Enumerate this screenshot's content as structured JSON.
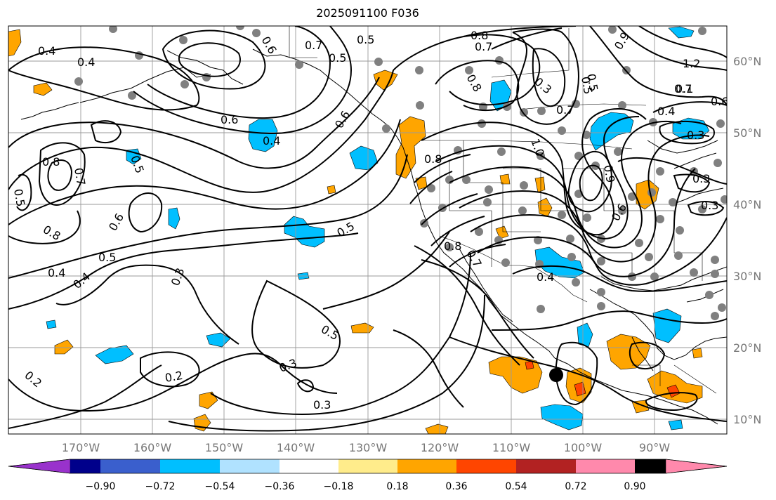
{
  "title": "2025091100 F036",
  "longitude_labels": [
    "170°W",
    "160°W",
    "150°W",
    "140°W",
    "130°W",
    "120°W",
    "110°W",
    "100°W",
    "90°W"
  ],
  "latitude_labels": [
    "60°N",
    "50°N",
    "40°N",
    "30°N",
    "20°N",
    "10°N"
  ],
  "colorbar": {
    "colors": [
      "#9932cc",
      "#00008b",
      "#3a5fcd",
      "#00bfff",
      "#b0e2ff",
      "#ffffff",
      "#ffec8b",
      "#ffa500",
      "#ff4500",
      "#b22222",
      "#ff89ac"
    ],
    "tick_labels": [
      "−0.90",
      "−0.72",
      "−0.54",
      "−0.36",
      "−0.18",
      "0.18",
      "0.36",
      "0.54",
      "0.72",
      "0.90"
    ]
  },
  "contour_labels": [
    "0.4",
    "0.4",
    "0.6",
    "0.7",
    "0.5",
    "0.5",
    "0.8",
    "0.7",
    "1.2",
    "0.6",
    "0.8",
    "0.7",
    "0.6",
    "0.4",
    "0.3",
    "0.7",
    "0.4",
    "0.8",
    "1.0",
    "0.5",
    "0.8",
    "0.7",
    "0.8",
    "0.9",
    "0.5",
    "0.6",
    "0.6",
    "0.5",
    "0.5",
    "0.8",
    "0.6",
    "0.5",
    "0.4",
    "0.4",
    "0.3",
    "0.5",
    "0.3",
    "0.2",
    "0.2",
    "0.3",
    "0.3",
    "0.4",
    "0.5",
    "0.7",
    "0.3",
    "0.3",
    "0.9",
    "0.1"
  ]
}
